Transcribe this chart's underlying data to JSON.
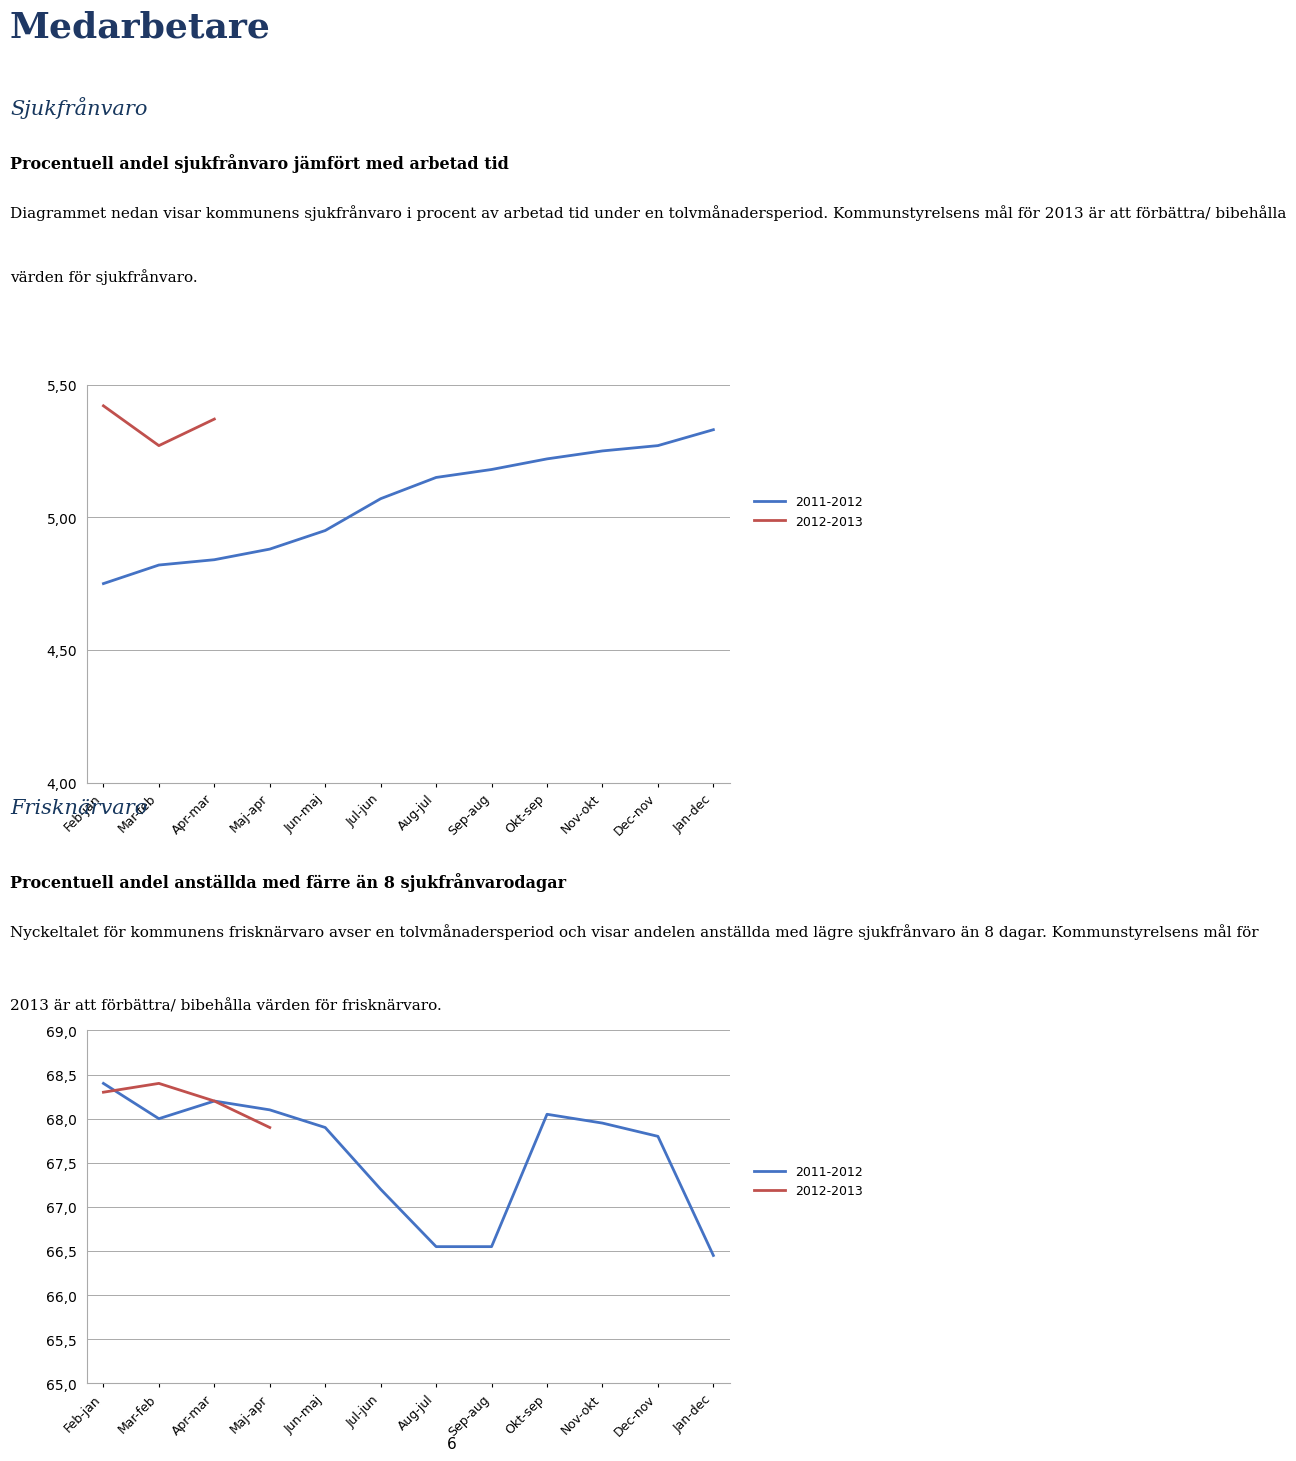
{
  "title_main": "Medarbetare",
  "section1_title": "Sjukfrånvaro",
  "section1_bold": "Procentuell andel sjukfrånvaro jämfört med arbetad tid",
  "section1_text1": "Diagrammet nedan visar kommunens sjukfrånvaro i procent av arbetad tid under en tolvmånadersperiod. Kommunstyrelsens mål för 2013 är att förbättra/ bibehålla",
  "section1_text2": "värden för sjukfrånvaro.",
  "section2_title": "Frisknärvaro",
  "section2_bold": "Procentuell andel anställda med färre än 8 sjukfrånvarodagar",
  "section2_text1": "Nyckeltalet för kommunens frisknärvaro avser en tolvmånadersperiod och visar andelen anställda med lägre sjukfrånvaro än 8 dagar. Kommunstyrelsens mål för",
  "section2_text2": "2013 är att förbättra/ bibehålla värden för frisknärvaro.",
  "xticklabels": [
    "Feb-jan",
    "Mar-feb",
    "Apr-mar",
    "Maj-apr",
    "Jun-maj",
    "Jul-jun",
    "Aug-jul",
    "Sep-aug",
    "Okt-sep",
    "Nov-okt",
    "Dec-nov",
    "Jan-dec"
  ],
  "chart1_blue": [
    4.75,
    4.82,
    4.84,
    4.88,
    4.95,
    5.07,
    5.15,
    5.18,
    5.22,
    5.25,
    5.27,
    5.33
  ],
  "chart1_red": [
    5.42,
    5.27,
    5.37,
    null,
    null,
    null,
    null,
    null,
    null,
    null,
    null,
    null
  ],
  "chart1_ylim": [
    4.0,
    5.5
  ],
  "chart1_yticks": [
    4.0,
    4.5,
    5.0,
    5.5
  ],
  "chart1_ytick_labels": [
    "4,00",
    "4,50",
    "5,00",
    "5,50"
  ],
  "chart2_blue": [
    68.4,
    68.0,
    68.2,
    68.1,
    67.9,
    67.2,
    66.55,
    66.55,
    68.05,
    67.95,
    67.8,
    66.45
  ],
  "chart2_red": [
    68.3,
    68.4,
    68.2,
    67.9,
    null,
    null,
    null,
    null,
    null,
    null,
    null,
    null
  ],
  "chart2_ylim": [
    65.0,
    69.0
  ],
  "chart2_yticks": [
    65.0,
    65.5,
    66.0,
    66.5,
    67.0,
    67.5,
    68.0,
    68.5,
    69.0
  ],
  "chart2_ytick_labels": [
    "65,0",
    "65,5",
    "66,0",
    "66,5",
    "67,0",
    "67,5",
    "68,0",
    "68,5",
    "69,0"
  ],
  "blue_color": "#4472C4",
  "red_color": "#C0504D",
  "legend_2011": "2011-2012",
  "legend_2012": "2012-2013",
  "page_number": "6",
  "title_color": "#1F3864",
  "section_title_color": "#17375E",
  "background_color": "#FFFFFF",
  "grid_color": "#AAAAAA"
}
